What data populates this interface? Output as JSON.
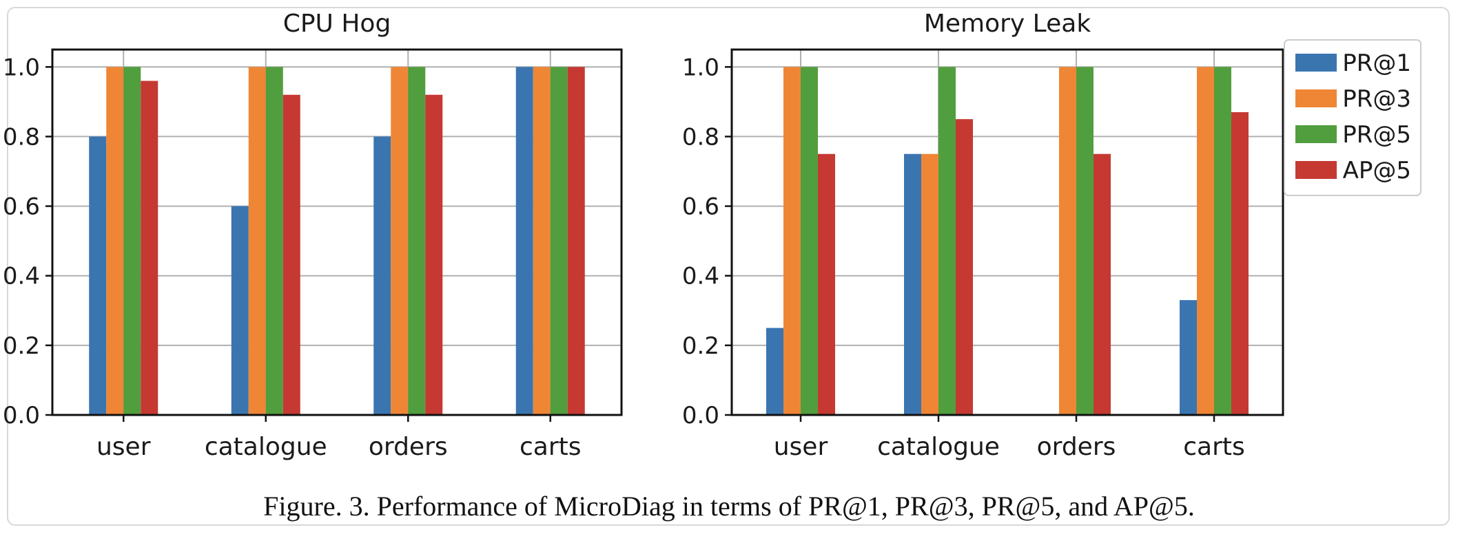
{
  "caption": "Figure. 3.  Performance of MicroDiag in terms of PR@1, PR@3, PR@5, and AP@5.",
  "chart_data": [
    {
      "type": "bar",
      "title": "CPU Hog",
      "categories": [
        "user",
        "catalogue",
        "orders",
        "carts"
      ],
      "ylim": [
        0,
        1.05
      ],
      "yticks": [
        "0.0",
        "0.2",
        "0.4",
        "0.6",
        "0.8",
        "1.0"
      ],
      "grid": true,
      "series": [
        {
          "name": "PR@1",
          "color": "#3a75b0",
          "values": [
            0.8,
            0.6,
            0.8,
            1.0
          ]
        },
        {
          "name": "PR@3",
          "color": "#ef8636",
          "values": [
            1.0,
            1.0,
            1.0,
            1.0
          ]
        },
        {
          "name": "PR@5",
          "color": "#519e3e",
          "values": [
            1.0,
            1.0,
            1.0,
            1.0
          ]
        },
        {
          "name": "AP@5",
          "color": "#c53932",
          "values": [
            0.96,
            0.92,
            0.92,
            1.0
          ]
        }
      ]
    },
    {
      "type": "bar",
      "title": "Memory Leak",
      "categories": [
        "user",
        "catalogue",
        "orders",
        "carts"
      ],
      "ylim": [
        0,
        1.05
      ],
      "yticks": [
        "0.0",
        "0.2",
        "0.4",
        "0.6",
        "0.8",
        "1.0"
      ],
      "grid": true,
      "legend_position": "top-right",
      "series": [
        {
          "name": "PR@1",
          "color": "#3a75b0",
          "values": [
            0.25,
            0.75,
            0.0,
            0.33
          ]
        },
        {
          "name": "PR@3",
          "color": "#ef8636",
          "values": [
            1.0,
            0.75,
            1.0,
            1.0
          ]
        },
        {
          "name": "PR@5",
          "color": "#519e3e",
          "values": [
            1.0,
            1.0,
            1.0,
            1.0
          ]
        },
        {
          "name": "AP@5",
          "color": "#c53932",
          "values": [
            0.75,
            0.85,
            0.75,
            0.87
          ]
        }
      ]
    }
  ]
}
